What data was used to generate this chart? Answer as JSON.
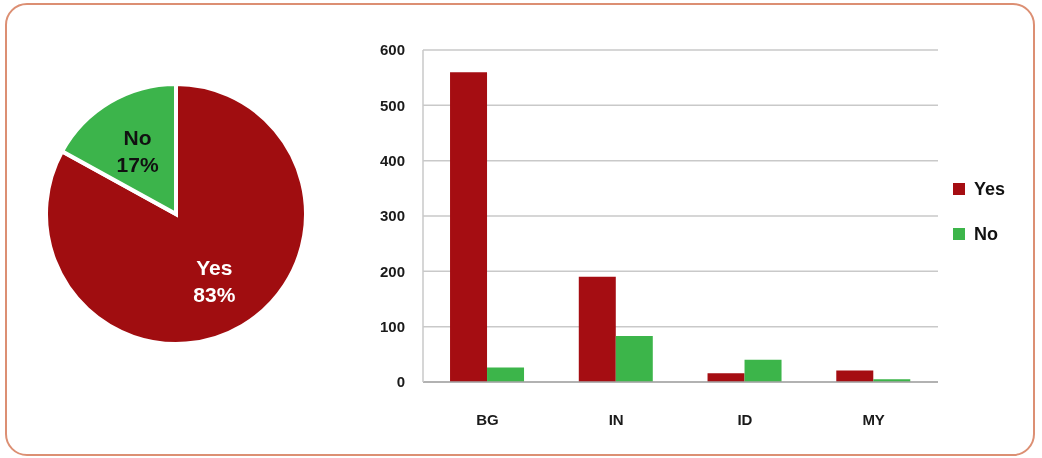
{
  "chart_data": [
    {
      "type": "pie",
      "categories": [
        "Yes",
        "No"
      ],
      "values": [
        83,
        17
      ],
      "colors": [
        "#a00d10",
        "#3cb44b"
      ],
      "value_labels": [
        "83%",
        "17%"
      ]
    },
    {
      "type": "bar",
      "categories": [
        "BG",
        "IN",
        "ID",
        "MY"
      ],
      "series": [
        {
          "name": "Yes",
          "color": "#a50d12",
          "values": [
            560,
            190,
            16,
            21
          ]
        },
        {
          "name": "No",
          "color": "#3cb54a",
          "values": [
            26,
            83,
            40,
            5
          ]
        }
      ],
      "ylim": [
        0,
        600
      ],
      "yticks": [
        0,
        100,
        200,
        300,
        400,
        500,
        600
      ],
      "grid": "y",
      "legend": "right"
    }
  ]
}
